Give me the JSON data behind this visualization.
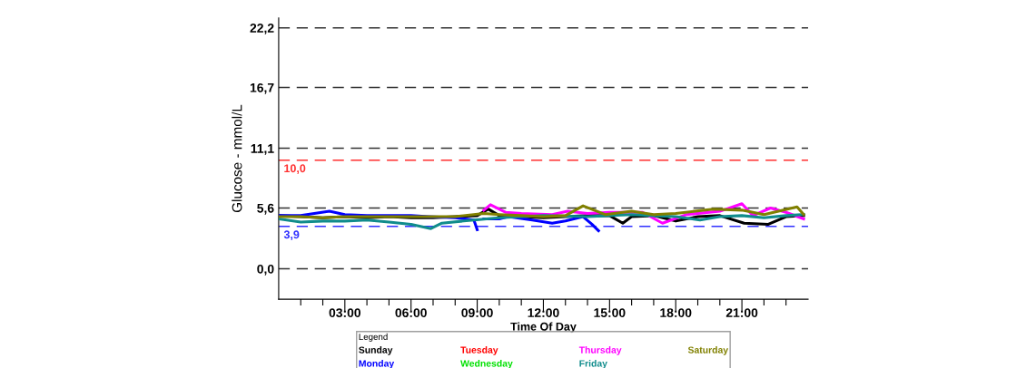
{
  "chart_data": {
    "type": "line",
    "xlabel": "Time Of Day",
    "ylabel": "Glucose - mmol/L",
    "legend_title": "Legend",
    "legend": "bottom",
    "grid": "y",
    "line_style": "solid",
    "marker": "none",
    "xlim": [
      0,
      24
    ],
    "xticks": [
      {
        "value": 1,
        "label": null
      },
      {
        "value": 2,
        "label": null
      },
      {
        "value": 3,
        "label": "03:00"
      },
      {
        "value": 4,
        "label": null
      },
      {
        "value": 5,
        "label": null
      },
      {
        "value": 6,
        "label": "06:00"
      },
      {
        "value": 7,
        "label": null
      },
      {
        "value": 8,
        "label": null
      },
      {
        "value": 9,
        "label": "09:00"
      },
      {
        "value": 10,
        "label": null
      },
      {
        "value": 11,
        "label": null
      },
      {
        "value": 12,
        "label": "12:00"
      },
      {
        "value": 13,
        "label": null
      },
      {
        "value": 14,
        "label": null
      },
      {
        "value": 15,
        "label": "15:00"
      },
      {
        "value": 16,
        "label": null
      },
      {
        "value": 17,
        "label": null
      },
      {
        "value": 18,
        "label": "18:00"
      },
      {
        "value": 19,
        "label": null
      },
      {
        "value": 20,
        "label": null
      },
      {
        "value": 21,
        "label": "21:00"
      },
      {
        "value": 22,
        "label": null
      },
      {
        "value": 23,
        "label": null
      }
    ],
    "ylim": [
      -2.8,
      23.1
    ],
    "yticks": [
      {
        "value": 0,
        "label": "0,0"
      },
      {
        "value": 5.6,
        "label": "5,6"
      },
      {
        "value": 11.1,
        "label": "11,1"
      },
      {
        "value": 16.7,
        "label": "16,7"
      },
      {
        "value": 22.2,
        "label": "22,2"
      }
    ],
    "ref_lines": [
      {
        "axis": "y",
        "value": 10.0,
        "label": "10,0",
        "color": "#ff3030",
        "line_style": "dashed"
      },
      {
        "axis": "y",
        "value": 3.9,
        "label": "3,9",
        "color": "#3030ff",
        "line_style": "dashed"
      }
    ],
    "series": [
      {
        "name": "Sunday",
        "color": "#000000",
        "x": [
          0,
          1,
          2,
          3,
          4,
          5,
          6,
          7,
          8,
          9,
          9.5,
          10,
          11,
          12,
          13,
          14,
          15,
          15.6,
          16,
          17,
          18,
          19,
          20,
          21.1,
          22.2,
          23,
          23.8
        ],
        "values": [
          4.9,
          4.8,
          4.7,
          4.8,
          4.7,
          4.8,
          4.7,
          4.7,
          4.8,
          4.9,
          5.5,
          4.9,
          4.8,
          4.7,
          4.8,
          4.9,
          4.9,
          4.2,
          4.8,
          4.9,
          4.4,
          4.8,
          4.9,
          4.2,
          4.1,
          4.8,
          4.9
        ]
      },
      {
        "name": "Monday",
        "color": "#0000ff",
        "x": [
          0,
          1,
          2.3,
          3,
          4,
          5,
          6,
          6.8,
          8,
          8.85,
          9.0,
          null,
          9.3,
          10,
          10.4,
          11.5,
          12.4,
          13,
          13.8,
          14.2,
          14.5
        ],
        "values": [
          4.9,
          4.9,
          5.3,
          5.0,
          4.9,
          4.9,
          4.9,
          4.8,
          4.7,
          4.5,
          3.6,
          null,
          4.6,
          4.6,
          4.8,
          4.5,
          4.2,
          4.4,
          4.8,
          4.1,
          3.5
        ]
      },
      {
        "name": "Tuesday",
        "color": "#ff0000"
      },
      {
        "name": "Wednesday",
        "color": "#00e000"
      },
      {
        "name": "Thursday",
        "color": "#ff00ff",
        "x": [
          9.3,
          9.6,
          10.3,
          11,
          12.4,
          13.1,
          14,
          15,
          16.5,
          17.4,
          18.5,
          20,
          21,
          21.5,
          22.3,
          23,
          23.8
        ],
        "values": [
          5.4,
          5.9,
          5.2,
          5.1,
          5.0,
          5.3,
          5.1,
          5.2,
          5.2,
          4.2,
          5.0,
          5.3,
          6.0,
          4.9,
          5.6,
          5.2,
          4.6
        ]
      },
      {
        "name": "Friday",
        "color": "#108c8c",
        "x": [
          0,
          1,
          2,
          3,
          4,
          5,
          6,
          6.9,
          7.4,
          8.85,
          10,
          11,
          12,
          14,
          16,
          17,
          18,
          19.1,
          20,
          21,
          22,
          23,
          23.8
        ],
        "values": [
          4.6,
          4.3,
          4.4,
          4.4,
          4.5,
          4.3,
          4.1,
          3.7,
          4.2,
          4.5,
          4.7,
          4.8,
          4.9,
          4.8,
          5.0,
          4.9,
          4.8,
          4.5,
          4.8,
          4.9,
          4.7,
          4.9,
          5.0
        ]
      },
      {
        "name": "Saturday",
        "color": "#808000",
        "x": [
          0,
          1,
          2,
          3,
          4,
          5,
          6,
          7,
          8,
          9.3,
          10,
          11,
          12,
          13,
          13.8,
          14.8,
          16,
          17,
          18,
          19.7,
          21,
          22,
          23.5,
          23.8
        ],
        "values": [
          4.8,
          4.8,
          4.7,
          4.8,
          4.8,
          4.8,
          4.8,
          4.8,
          4.8,
          5.1,
          5.0,
          4.9,
          4.8,
          4.9,
          5.8,
          5.0,
          5.3,
          5.0,
          5.1,
          5.5,
          5.4,
          5.0,
          5.7,
          5.0
        ]
      }
    ]
  }
}
